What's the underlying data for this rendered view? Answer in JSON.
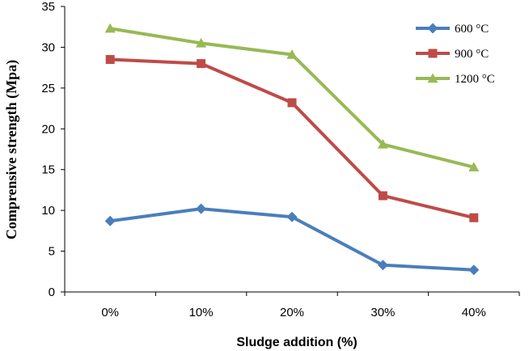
{
  "chart_data": {
    "type": "line",
    "title": "",
    "xlabel": "Sludge addition (%)",
    "ylabel": "Comprensive strength (Mpa)",
    "categories": [
      "0%",
      "10%",
      "20%",
      "30%",
      "40%"
    ],
    "ylim": [
      0,
      35
    ],
    "yticks": [
      0,
      5,
      10,
      15,
      20,
      25,
      30,
      35
    ],
    "grid": false,
    "legend_position": "top-right",
    "series": [
      {
        "name": "600 °C",
        "color": "#4a7ebb",
        "marker": "diamond",
        "values": [
          8.7,
          10.2,
          9.2,
          3.3,
          2.7
        ]
      },
      {
        "name": "900 °C",
        "color": "#be4b48",
        "marker": "square",
        "values": [
          28.5,
          28.0,
          23.2,
          11.8,
          9.1
        ]
      },
      {
        "name": "1200 °C",
        "color": "#98b954",
        "marker": "triangle",
        "values": [
          32.3,
          30.5,
          29.1,
          18.1,
          15.3
        ]
      }
    ]
  }
}
